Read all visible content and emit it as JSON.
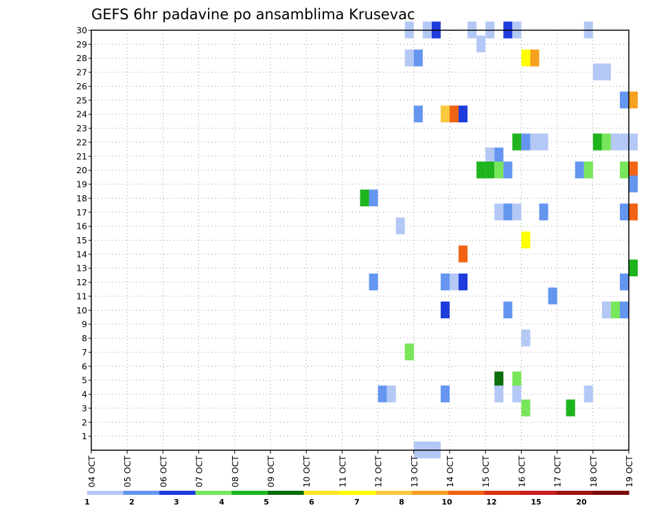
{
  "chart_data": {
    "type": "heatmap",
    "title": "GEFS 6hr padavine po ansamblima Krusevac",
    "xlabel": "",
    "ylabel": "",
    "x_tick_labels": [
      "04 OCT",
      "05 OCT",
      "06 OCT",
      "07 OCT",
      "08 OCT",
      "09 OCT",
      "10 OCT",
      "11 OCT",
      "12 OCT",
      "13 OCT",
      "14 OCT",
      "15 OCT",
      "16 OCT",
      "17 OCT",
      "18 OCT",
      "19 OCT"
    ],
    "y_tick_labels": [
      "1",
      "2",
      "3",
      "4",
      "5",
      "6",
      "7",
      "8",
      "9",
      "10",
      "11",
      "12",
      "13",
      "14",
      "15",
      "16",
      "17",
      "18",
      "19",
      "20",
      "21",
      "22",
      "23",
      "24",
      "25",
      "26",
      "27",
      "28",
      "29",
      "30"
    ],
    "x_unit": "6-hour steps after 04 OCT",
    "xlim": [
      0,
      60
    ],
    "ylim": [
      0,
      30
    ],
    "grid": true,
    "legend": {
      "placement": "bottom",
      "labels": [
        "1",
        "2",
        "3",
        "4",
        "5",
        "6",
        "7",
        "8",
        "10",
        "12",
        "15",
        "20"
      ],
      "colors": [
        "#b4c8f5",
        "#6496f0",
        "#1e3cdc",
        "#78e65a",
        "#1eb41e",
        "#0a6e0a",
        "#ffe628",
        "#ffff00",
        "#fac83c",
        "#f5a01e",
        "#f06414",
        "#dc3214",
        "#c81e1e",
        "#a01414",
        "#7a0a0a"
      ]
    },
    "cells": [
      {
        "x": 35.5,
        "y": 30,
        "c": 0
      },
      {
        "x": 37.5,
        "y": 30,
        "c": 0
      },
      {
        "x": 38.5,
        "y": 30,
        "c": 2
      },
      {
        "x": 42.5,
        "y": 30,
        "c": 0
      },
      {
        "x": 44.5,
        "y": 30,
        "c": 0
      },
      {
        "x": 46.5,
        "y": 30,
        "c": 2
      },
      {
        "x": 47.5,
        "y": 30,
        "c": 0
      },
      {
        "x": 55.5,
        "y": 30,
        "c": 0
      },
      {
        "x": 43.5,
        "y": 29,
        "c": 0
      },
      {
        "x": 35.5,
        "y": 28,
        "c": 0
      },
      {
        "x": 36.5,
        "y": 28,
        "c": 1
      },
      {
        "x": 48.5,
        "y": 28,
        "c": 7
      },
      {
        "x": 49.5,
        "y": 28,
        "c": 9
      },
      {
        "x": 56.5,
        "y": 27,
        "c": 0
      },
      {
        "x": 57.5,
        "y": 27,
        "c": 0
      },
      {
        "x": 59.5,
        "y": 25,
        "c": 1
      },
      {
        "x": 60.5,
        "y": 25,
        "c": 9
      },
      {
        "x": 36.5,
        "y": 24,
        "c": 1
      },
      {
        "x": 39.5,
        "y": 24,
        "c": 8
      },
      {
        "x": 40.5,
        "y": 24,
        "c": 10
      },
      {
        "x": 41.5,
        "y": 24,
        "c": 2
      },
      {
        "x": 47.5,
        "y": 22,
        "c": 4
      },
      {
        "x": 48.5,
        "y": 22,
        "c": 1
      },
      {
        "x": 49.5,
        "y": 22,
        "c": 0
      },
      {
        "x": 50.5,
        "y": 22,
        "c": 0
      },
      {
        "x": 56.5,
        "y": 22,
        "c": 4
      },
      {
        "x": 57.5,
        "y": 22,
        "c": 3
      },
      {
        "x": 58.5,
        "y": 22,
        "c": 0
      },
      {
        "x": 59.5,
        "y": 22,
        "c": 0
      },
      {
        "x": 60.5,
        "y": 22,
        "c": 0
      },
      {
        "x": 44.5,
        "y": 21,
        "c": 0
      },
      {
        "x": 45.5,
        "y": 21,
        "c": 1
      },
      {
        "x": 43.5,
        "y": 20,
        "c": 4
      },
      {
        "x": 44.5,
        "y": 20,
        "c": 4
      },
      {
        "x": 45.5,
        "y": 20,
        "c": 3
      },
      {
        "x": 46.5,
        "y": 20,
        "c": 1
      },
      {
        "x": 54.5,
        "y": 20,
        "c": 1
      },
      {
        "x": 55.5,
        "y": 20,
        "c": 3
      },
      {
        "x": 59.5,
        "y": 20,
        "c": 3
      },
      {
        "x": 60.5,
        "y": 20,
        "c": 10
      },
      {
        "x": 60.5,
        "y": 19,
        "c": 1
      },
      {
        "x": 30.5,
        "y": 18,
        "c": 4
      },
      {
        "x": 31.5,
        "y": 18,
        "c": 1
      },
      {
        "x": 45.5,
        "y": 17,
        "c": 0
      },
      {
        "x": 46.5,
        "y": 17,
        "c": 1
      },
      {
        "x": 47.5,
        "y": 17,
        "c": 0
      },
      {
        "x": 50.5,
        "y": 17,
        "c": 1
      },
      {
        "x": 59.5,
        "y": 17,
        "c": 1
      },
      {
        "x": 60.5,
        "y": 17,
        "c": 10
      },
      {
        "x": 34.5,
        "y": 16,
        "c": 0
      },
      {
        "x": 48.5,
        "y": 15,
        "c": 7
      },
      {
        "x": 41.5,
        "y": 14,
        "c": 10
      },
      {
        "x": 60.5,
        "y": 13,
        "c": 4
      },
      {
        "x": 31.5,
        "y": 12,
        "c": 1
      },
      {
        "x": 39.5,
        "y": 12,
        "c": 1
      },
      {
        "x": 40.5,
        "y": 12,
        "c": 0
      },
      {
        "x": 41.5,
        "y": 12,
        "c": 2
      },
      {
        "x": 59.5,
        "y": 12,
        "c": 1
      },
      {
        "x": 51.5,
        "y": 11,
        "c": 1
      },
      {
        "x": 39.5,
        "y": 10,
        "c": 2
      },
      {
        "x": 46.5,
        "y": 10,
        "c": 1
      },
      {
        "x": 57.5,
        "y": 10,
        "c": 0
      },
      {
        "x": 58.5,
        "y": 10,
        "c": 3
      },
      {
        "x": 59.5,
        "y": 10,
        "c": 1
      },
      {
        "x": 48.5,
        "y": 8,
        "c": 0
      },
      {
        "x": 35.5,
        "y": 7,
        "c": 3
      },
      {
        "x": 45.5,
        "y": 5,
        "c": 5
      },
      {
        "x": 47.5,
        "y": 5,
        "c": 3
      },
      {
        "x": 32.5,
        "y": 4,
        "c": 1
      },
      {
        "x": 33.5,
        "y": 4,
        "c": 0
      },
      {
        "x": 39.5,
        "y": 4,
        "c": 1
      },
      {
        "x": 45.5,
        "y": 4,
        "c": 0
      },
      {
        "x": 47.5,
        "y": 4,
        "c": 0
      },
      {
        "x": 55.5,
        "y": 4,
        "c": 0
      },
      {
        "x": 48.5,
        "y": 3,
        "c": 3
      },
      {
        "x": 53.5,
        "y": 3,
        "c": 4
      },
      {
        "x": 36.5,
        "y": 0,
        "c": 0
      },
      {
        "x": 37.5,
        "y": 0,
        "c": 0
      },
      {
        "x": 38.5,
        "y": 0,
        "c": 0
      }
    ]
  }
}
